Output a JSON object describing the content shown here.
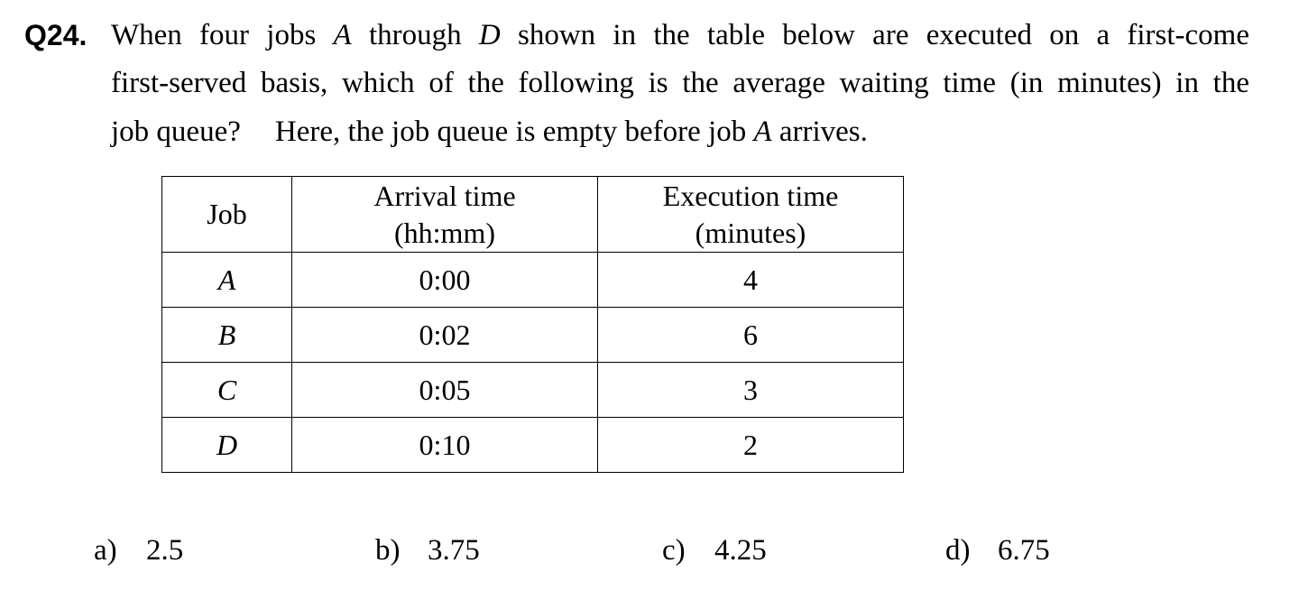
{
  "question": {
    "number": "Q24.",
    "line1": {
      "t1": "When four jobs ",
      "jobA": "A",
      "t2": " through ",
      "jobD": "D",
      "t3": " shown in the table below are executed on a first-come"
    },
    "line2": "first-served basis, which of the following is the average waiting time (in minutes) in the",
    "line3": {
      "t1": "job queue?",
      "t2": "Here, the job queue is empty before job ",
      "jobA": "A",
      "t3": " arrives."
    }
  },
  "table": {
    "headers": {
      "job": "Job",
      "arrival_line1": "Arrival time",
      "arrival_line2": "(hh:mm)",
      "execution_line1": "Execution time",
      "execution_line2": "(minutes)"
    },
    "rows": [
      {
        "job": "A",
        "arrival": "0:00",
        "execution": "4"
      },
      {
        "job": "B",
        "arrival": "0:02",
        "execution": "6"
      },
      {
        "job": "C",
        "arrival": "0:05",
        "execution": "3"
      },
      {
        "job": "D",
        "arrival": "0:10",
        "execution": "2"
      }
    ]
  },
  "choices": [
    {
      "letter": "a)",
      "value": "2.5"
    },
    {
      "letter": "b)",
      "value": "3.75"
    },
    {
      "letter": "c)",
      "value": "4.25"
    },
    {
      "letter": "d)",
      "value": "6.75"
    }
  ]
}
